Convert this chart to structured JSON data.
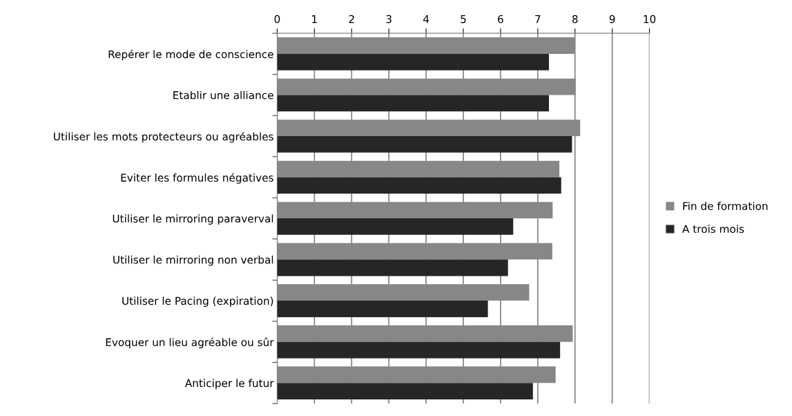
{
  "chart_data": {
    "type": "bar",
    "orientation": "horizontal",
    "categories": [
      "Repérer le mode de conscience",
      "Etablir une alliance",
      "Utiliser les mots protecteurs ou agréables",
      "Eviter les formules négatives",
      "Utiliser le mirroring paraverval",
      "Utiliser le mirroring non verbal",
      "Utiliser le Pacing (expiration)",
      "Evoquer un lieu agréable ou sûr",
      "Anticiper le futur"
    ],
    "series": [
      {
        "name": "Fin de formation",
        "color": "#878787",
        "values": [
          8.0,
          8.02,
          8.14,
          7.58,
          7.4,
          7.39,
          6.77,
          7.94,
          7.48
        ]
      },
      {
        "name": "A trois mois",
        "color": "#262626",
        "values": [
          7.3,
          7.3,
          7.92,
          7.63,
          6.34,
          6.2,
          5.66,
          7.6,
          6.87
        ]
      }
    ],
    "xlim": [
      0,
      10
    ],
    "xticks": [
      0,
      1,
      2,
      3,
      4,
      5,
      6,
      7,
      8,
      9,
      10
    ],
    "grid": "x",
    "legend": "right"
  }
}
